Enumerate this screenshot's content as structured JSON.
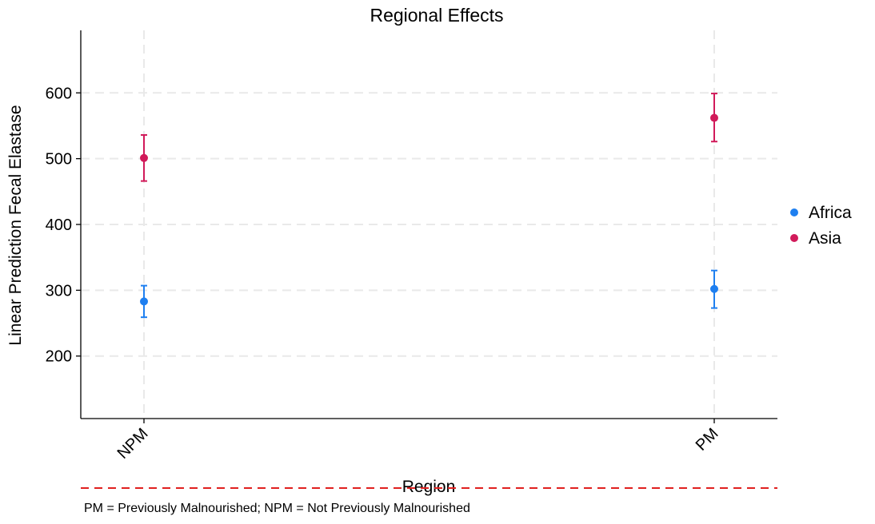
{
  "chart_data": {
    "type": "scatter",
    "title": "Regional Effects",
    "xlabel": "Region",
    "ylabel": "Linear Prediction Fecal Elastase",
    "categories": [
      "NPM",
      "PM"
    ],
    "ylim": [
      105,
      695
    ],
    "yticks": [
      200,
      300,
      400,
      500,
      600
    ],
    "grid": true,
    "legend_position": "right",
    "error_bars": true,
    "series": [
      {
        "name": "Africa",
        "color": "#1E7FF0",
        "values": [
          283,
          302
        ],
        "lower": [
          259,
          273
        ],
        "upper": [
          307,
          330
        ]
      },
      {
        "name": "Asia",
        "color": "#D11A5A",
        "values": [
          501,
          562
        ],
        "lower": [
          466,
          526
        ],
        "upper": [
          536,
          599
        ]
      }
    ],
    "reference_line_color": "#E0201F"
  },
  "caption": "PM = Previously Malnourished; NPM = Not Previously Malnourished"
}
